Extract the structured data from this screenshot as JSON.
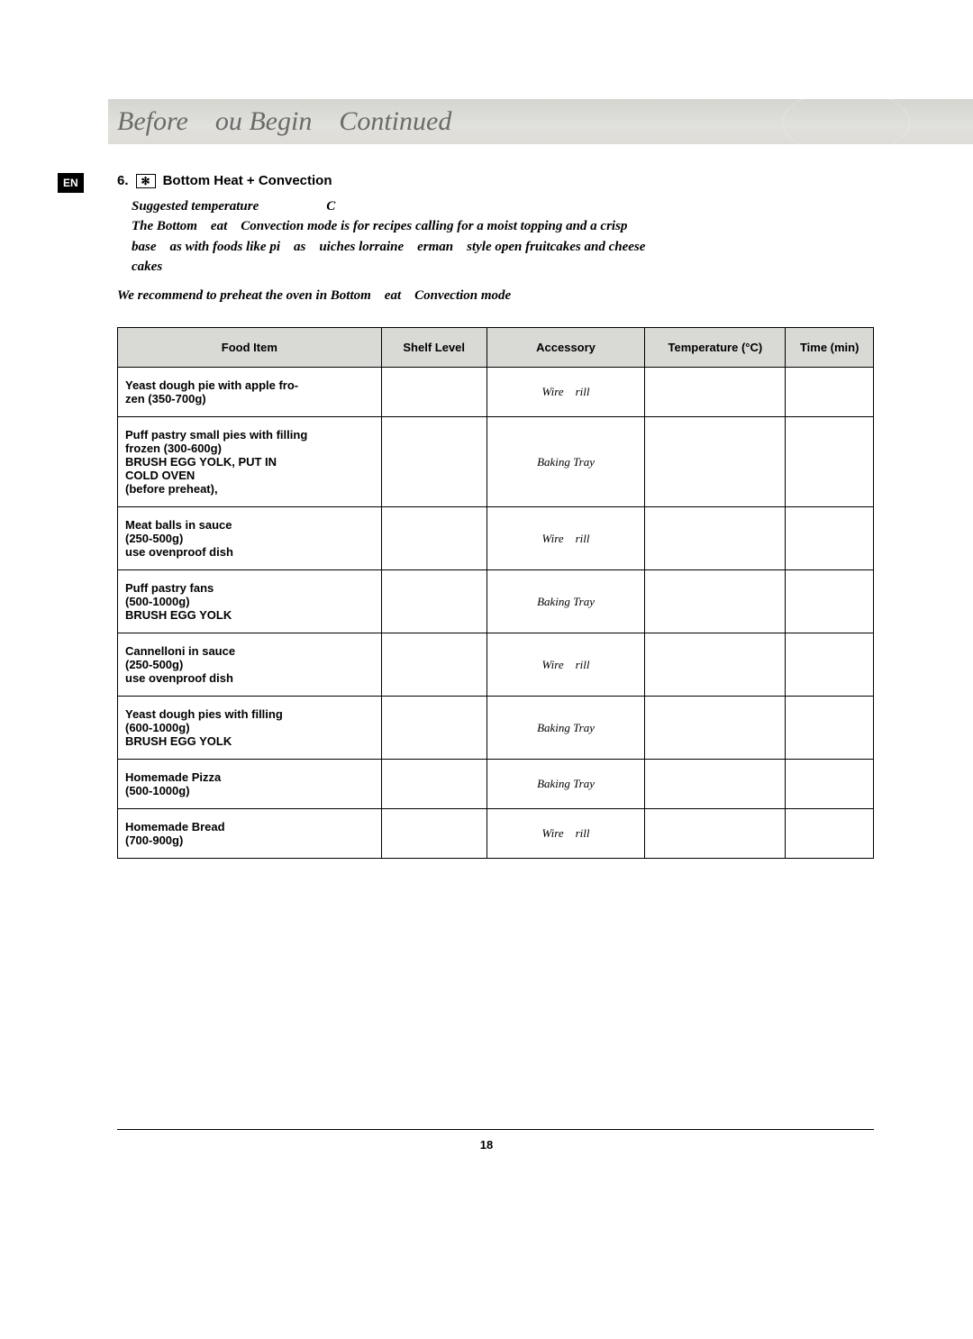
{
  "header": {
    "title": "Before ou Begin Continued"
  },
  "lang_badge": "EN",
  "section": {
    "number": "6.",
    "icon_glyph": "✻",
    "title": "Bottom Heat + Convection"
  },
  "desc": {
    "line1": "Suggested temperature     C",
    "line2": "The Bottom eat Convection mode is for recipes calling for a moist topping and a crisp",
    "line3": "base as with foods like pi as uiches lorraine erman style open fruitcakes and cheese",
    "line4": "cakes"
  },
  "recommend": "We recommend to preheat the oven in Bottom eat Convection mode",
  "table": {
    "columns": [
      {
        "key": "food",
        "label": "Food Item",
        "class": "col-food"
      },
      {
        "key": "shelf",
        "label": "Shelf Level",
        "class": "col-shelf"
      },
      {
        "key": "accessory",
        "label": "Accessory",
        "class": "col-acc"
      },
      {
        "key": "temp",
        "label": "Temperature (°C)",
        "class": "col-temp"
      },
      {
        "key": "time",
        "label": "Time (min)",
        "class": "col-time"
      }
    ],
    "rows": [
      {
        "food": "Yeast dough pie with apple fro-\nzen (350-700g)",
        "shelf": "",
        "accessory": "Wire rill",
        "temp": "",
        "time": ""
      },
      {
        "food": "Puff pastry small pies with filling\nfrozen (300-600g)\nBRUSH EGG YOLK, PUT IN\nCOLD OVEN\n(before preheat),",
        "shelf": "",
        "accessory": "Baking Tray",
        "temp": "",
        "time": ""
      },
      {
        "food": "Meat balls in sauce\n(250-500g)\nuse ovenproof dish",
        "shelf": "",
        "accessory": "Wire rill",
        "temp": "",
        "time": ""
      },
      {
        "food": "Puff pastry fans\n(500-1000g)\nBRUSH EGG YOLK",
        "shelf": "",
        "accessory": "Baking Tray",
        "temp": "",
        "time": ""
      },
      {
        "food": "Cannelloni in sauce\n(250-500g)\nuse ovenproof dish",
        "shelf": "",
        "accessory": "Wire rill",
        "temp": "",
        "time": ""
      },
      {
        "food": "Yeast dough pies with filling\n(600-1000g)\nBRUSH EGG YOLK",
        "shelf": "",
        "accessory": "Baking Tray",
        "temp": "",
        "time": ""
      },
      {
        "food": "Homemade Pizza\n(500-1000g)",
        "shelf": "",
        "accessory": "Baking Tray",
        "temp": "",
        "time": ""
      },
      {
        "food": "Homemade Bread\n(700-900g)",
        "shelf": "",
        "accessory": "Wire rill",
        "temp": "",
        "time": ""
      }
    ]
  },
  "page_number": "18"
}
